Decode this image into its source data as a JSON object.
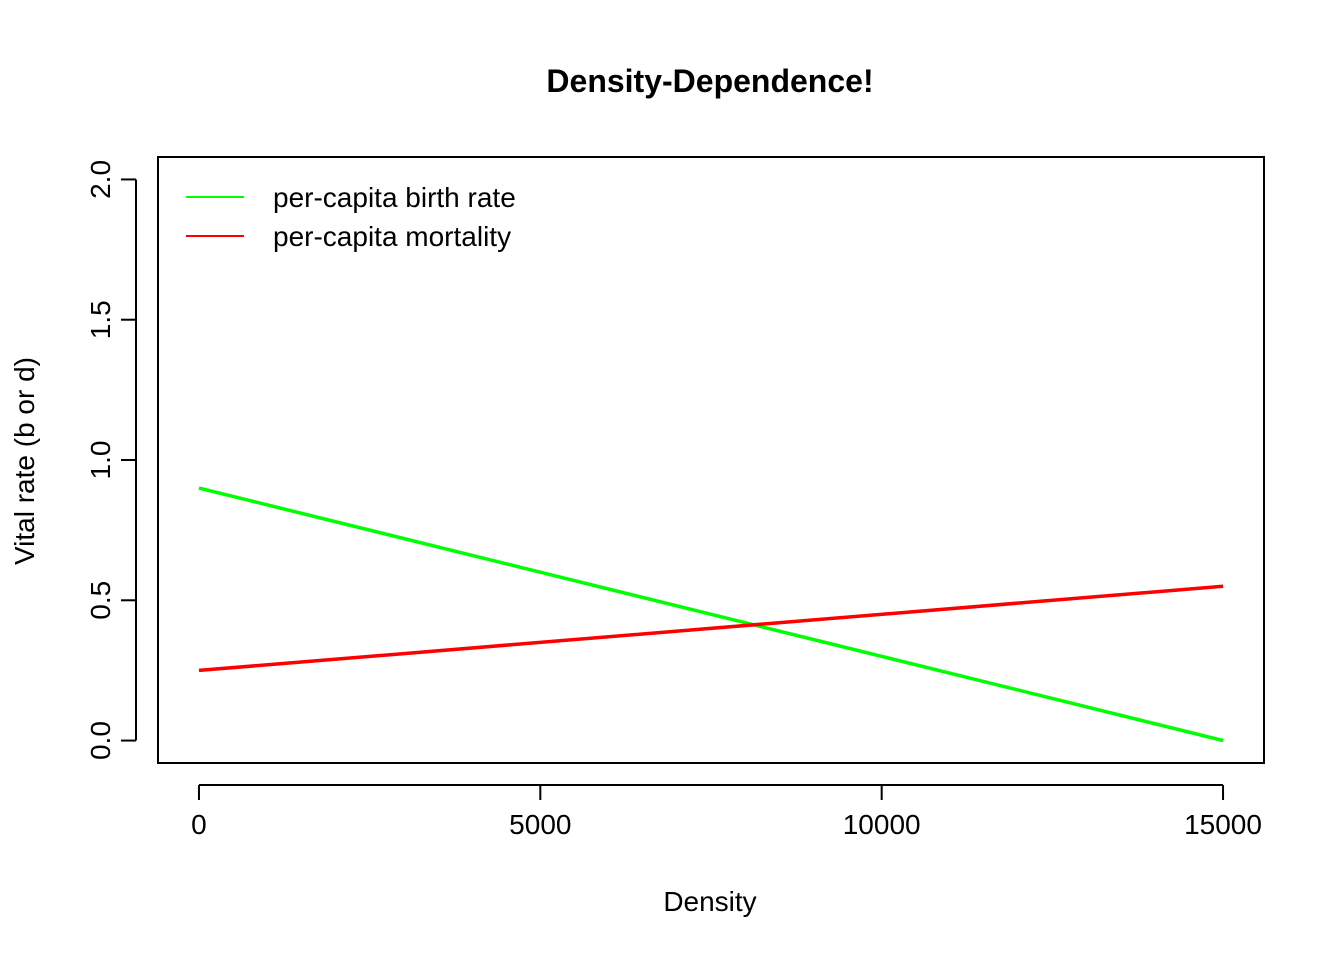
{
  "chart_data": {
    "type": "line",
    "title": "Density-Dependence!",
    "xlabel": "Density",
    "ylabel": "Vital rate (b or d)",
    "xlim": [
      -600,
      15600
    ],
    "ylim": [
      -0.08,
      2.08
    ],
    "xticks": [
      0,
      5000,
      10000,
      15000
    ],
    "xtick_labels": [
      "0",
      "5000",
      "10000",
      "15000"
    ],
    "yticks": [
      0,
      0.5,
      1,
      1.5,
      2
    ],
    "ytick_labels": [
      "0.0",
      "0.5",
      "1.0",
      "1.5",
      "2.0"
    ],
    "grid": false,
    "legend_position": "top-left",
    "series": [
      {
        "name": "per-capita birth rate",
        "color": "#00ff00",
        "x": [
          0,
          15000
        ],
        "y": [
          0.9,
          0.0
        ]
      },
      {
        "name": "per-capita mortality",
        "color": "#ff0000",
        "x": [
          0,
          15000
        ],
        "y": [
          0.25,
          0.55
        ]
      }
    ]
  }
}
